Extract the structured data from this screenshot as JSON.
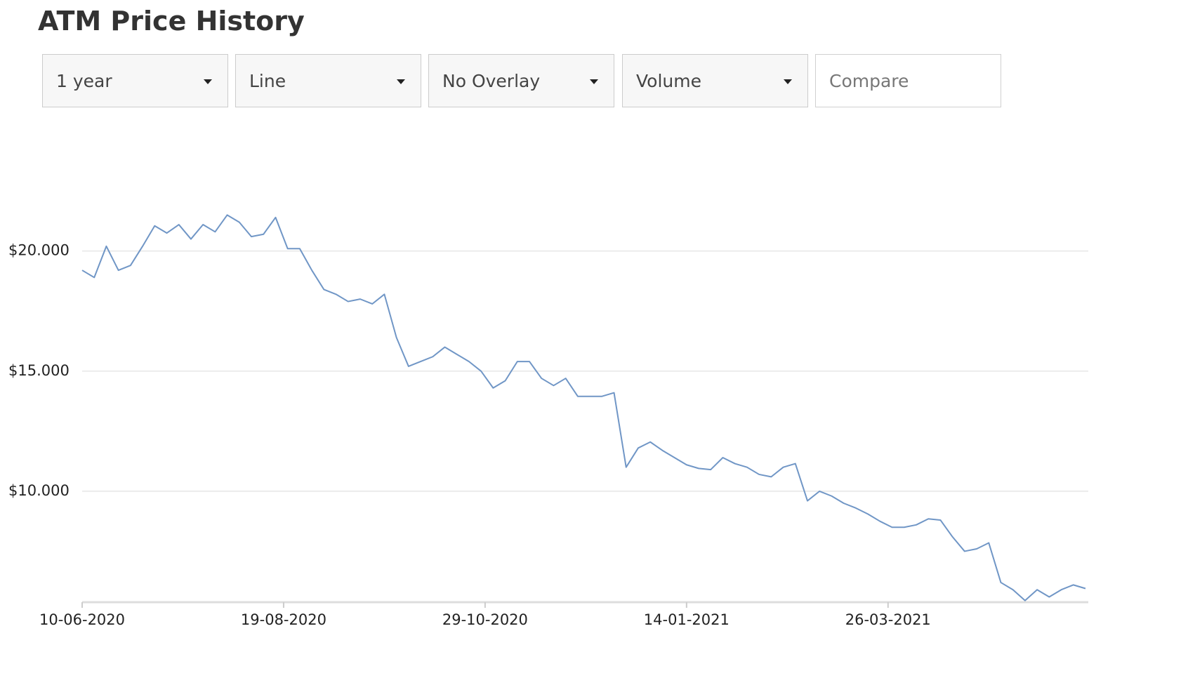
{
  "chart_data": {
    "type": "line",
    "title": "ATM Price History",
    "controls": {
      "dropdowns": [
        "1 year",
        "Line",
        "No Overlay",
        "Volume"
      ],
      "compare_placeholder": "Compare"
    },
    "x": [
      0,
      3,
      6,
      9,
      12,
      15,
      18,
      21,
      24,
      27,
      30,
      33,
      36,
      39,
      42,
      45,
      48,
      51,
      54,
      57,
      60,
      63,
      66,
      69,
      72,
      75,
      78,
      81,
      84,
      87,
      90,
      93,
      96,
      99,
      102,
      105,
      108,
      111,
      114,
      117,
      120,
      123,
      126,
      129,
      132,
      135,
      138,
      141,
      144,
      147,
      150,
      153,
      156,
      159,
      162,
      165,
      168,
      171,
      174,
      177,
      180,
      183,
      186,
      189,
      192,
      195,
      198,
      201,
      204,
      207,
      210,
      213,
      216,
      219,
      222,
      225,
      228,
      231,
      234,
      237,
      240,
      243,
      246,
      249
    ],
    "series": [
      {
        "color": "#7096c6",
        "values": [
          19.2,
          18.9,
          20.2,
          19.2,
          19.4,
          20.2,
          21.05,
          20.75,
          21.1,
          20.5,
          21.1,
          20.8,
          21.5,
          21.2,
          20.6,
          20.7,
          21.4,
          20.1,
          20.1,
          19.2,
          18.4,
          18.2,
          17.9,
          18.0,
          17.8,
          18.2,
          16.4,
          15.2,
          15.4,
          15.6,
          16.0,
          15.7,
          15.4,
          15.0,
          14.3,
          14.6,
          15.4,
          15.4,
          14.7,
          14.4,
          14.7,
          13.95,
          13.95,
          13.95,
          14.1,
          11.0,
          11.8,
          12.05,
          11.7,
          11.4,
          11.1,
          10.95,
          10.9,
          11.4,
          11.15,
          11.0,
          10.7,
          10.6,
          11.0,
          11.15,
          9.6,
          10.0,
          9.8,
          9.5,
          9.3,
          9.05,
          8.75,
          8.5,
          8.5,
          8.6,
          8.85,
          8.8,
          8.1,
          7.5,
          7.6,
          7.85,
          6.2,
          5.9,
          5.45,
          5.9,
          5.6,
          5.9,
          6.1,
          5.95
        ]
      }
    ],
    "xlim": [
      0,
      249.7
    ],
    "xticks": [
      {
        "value": 0,
        "label": "10-06-2020"
      },
      {
        "value": 50,
        "label": "19-08-2020"
      },
      {
        "value": 100,
        "label": "29-10-2020"
      },
      {
        "value": 150,
        "label": "14-01-2021"
      },
      {
        "value": 200,
        "label": "26-03-2021"
      }
    ],
    "ylim": [
      5.38,
      24.9
    ],
    "yticks": [
      {
        "value": 10,
        "label": "$10.000"
      },
      {
        "value": 15,
        "label": "$15.000"
      },
      {
        "value": 20,
        "label": "$20.000"
      }
    ],
    "grid": true
  }
}
